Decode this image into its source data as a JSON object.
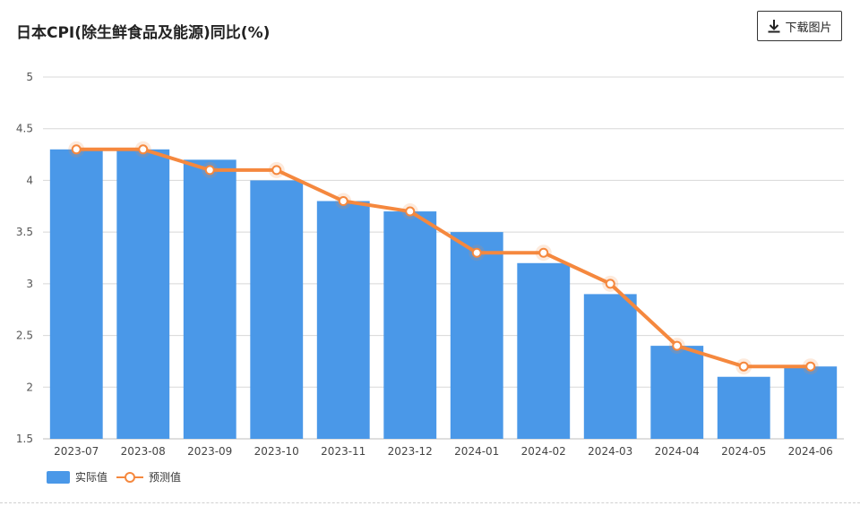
{
  "header": {
    "title": "日本CPI(除生鲜食品及能源)同比(%)",
    "download_label": "下载图片"
  },
  "colors": {
    "bar": "#4a98e8",
    "line": "#f5883e"
  },
  "chart_data": {
    "type": "bar",
    "title": "日本CPI(除生鲜食品及能源)同比(%)",
    "categories": [
      "2023-07",
      "2023-08",
      "2023-09",
      "2023-10",
      "2023-11",
      "2023-12",
      "2024-01",
      "2024-02",
      "2024-03",
      "2024-04",
      "2024-05",
      "2024-06"
    ],
    "series": [
      {
        "name": "实际值",
        "type": "bar",
        "values": [
          4.3,
          4.3,
          4.2,
          4.0,
          3.8,
          3.7,
          3.5,
          3.2,
          2.9,
          2.4,
          2.1,
          2.2
        ]
      },
      {
        "name": "预测值",
        "type": "line",
        "values": [
          4.3,
          4.3,
          4.1,
          4.1,
          3.8,
          3.7,
          3.3,
          3.3,
          3.0,
          2.4,
          2.2,
          2.2
        ]
      }
    ],
    "xlabel": "",
    "ylabel": "",
    "ylim": [
      1.5,
      5
    ],
    "yticks": [
      "5",
      "4.5",
      "4",
      "3.5",
      "3",
      "2.5",
      "2",
      "1.5"
    ],
    "grid": true,
    "legend_position": "bottom-left"
  }
}
